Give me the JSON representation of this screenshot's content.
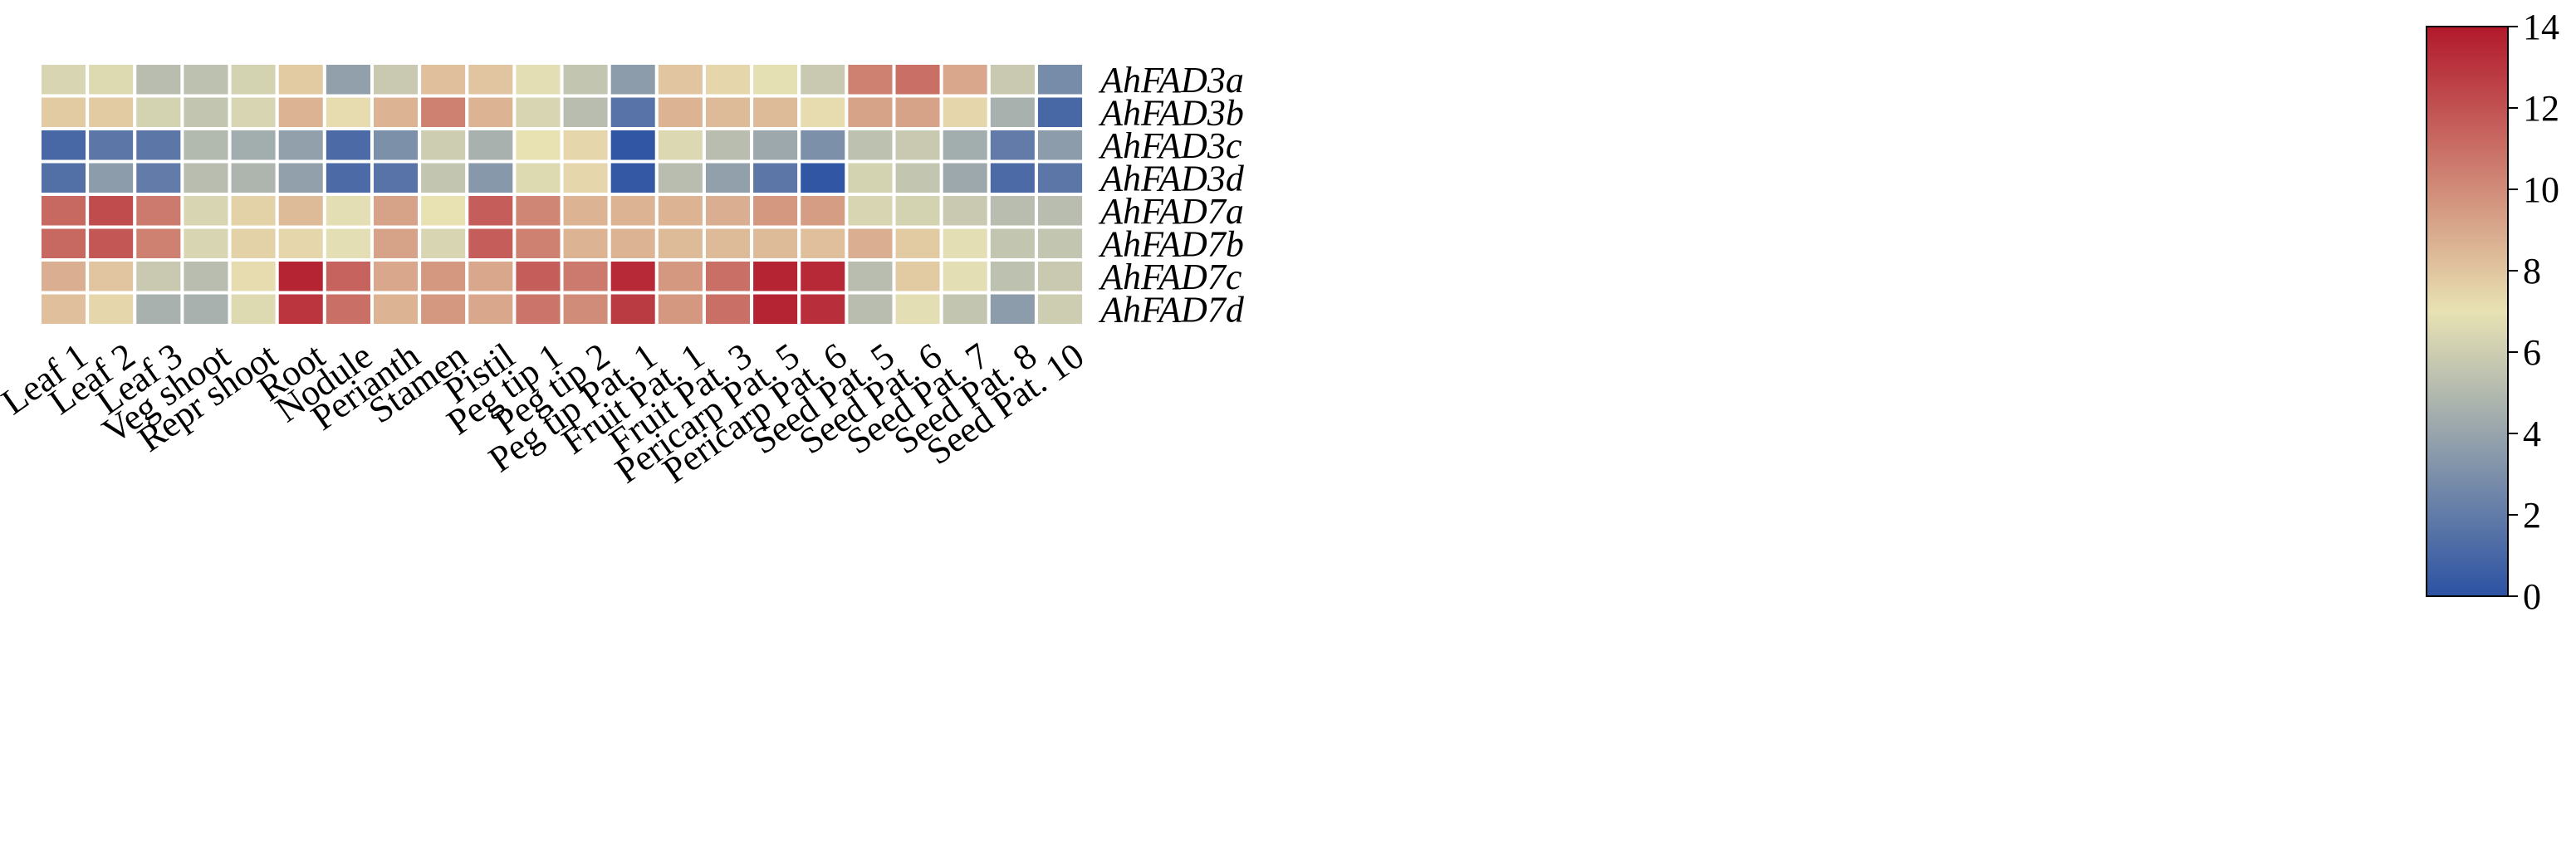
{
  "chart_data": {
    "type": "heatmap",
    "title": "",
    "xlabel": "",
    "ylabel": "",
    "columns": [
      "Leaf 1",
      "Leaf 2",
      "Leaf 3",
      "Veg shoot",
      "Repr shoot",
      "Root",
      "Nodule",
      "Perianth",
      "Stamen",
      "Pistil",
      "Peg tip 1",
      "Peg tip 2",
      "Peg tip Pat. 1",
      "Fruit Pat. 1",
      "Fruit Pat. 3",
      "Pericarp Pat. 5",
      "Pericarp Pat. 6",
      "Seed Pat. 5",
      "Seed Pat. 6",
      "Seed Pat. 7",
      "Seed Pat. 8",
      "Seed Pat. 10"
    ],
    "rows": [
      "AhFAD3a",
      "AhFAD3b",
      "AhFAD3c",
      "AhFAD3d",
      "AhFAD7a",
      "AhFAD7b",
      "AhFAD7c",
      "AhFAD7d"
    ],
    "values": [
      [
        6.4,
        6.6,
        5.2,
        5.4,
        6.2,
        7.8,
        3.8,
        5.8,
        8.2,
        8.0,
        6.8,
        5.6,
        3.6,
        8.0,
        7.4,
        6.9,
        5.8,
        10.4,
        11.0,
        9.0,
        5.8,
        2.8
      ],
      [
        7.8,
        7.8,
        6.2,
        5.6,
        6.4,
        8.6,
        7.2,
        8.6,
        10.4,
        8.6,
        6.4,
        5.2,
        1.6,
        8.6,
        8.4,
        8.4,
        7.2,
        9.2,
        9.2,
        7.4,
        4.6,
        1.0
      ],
      [
        1.0,
        1.8,
        1.8,
        5.0,
        4.4,
        3.8,
        1.2,
        3.0,
        6.0,
        4.6,
        7.0,
        7.4,
        0.2,
        6.5,
        5.2,
        4.2,
        3.0,
        5.4,
        5.8,
        4.4,
        2.0,
        3.6
      ],
      [
        1.4,
        3.6,
        2.0,
        5.2,
        4.8,
        3.8,
        1.2,
        1.6,
        5.6,
        3.4,
        6.6,
        7.4,
        0.3,
        5.2,
        3.8,
        1.8,
        0.2,
        6.2,
        5.6,
        4.2,
        1.2,
        1.8
      ],
      [
        11.2,
        12.2,
        10.6,
        6.4,
        7.6,
        8.4,
        6.8,
        9.2,
        7.0,
        11.6,
        10.2,
        8.6,
        8.6,
        8.6,
        8.8,
        9.6,
        9.4,
        6.4,
        6.2,
        5.8,
        5.2,
        5.2
      ],
      [
        11.2,
        11.8,
        10.4,
        6.4,
        7.6,
        7.4,
        6.8,
        9.2,
        6.4,
        11.6,
        10.4,
        8.6,
        8.6,
        8.4,
        8.4,
        8.4,
        8.2,
        8.8,
        7.8,
        6.8,
        5.6,
        5.6
      ],
      [
        8.8,
        8.0,
        5.8,
        5.2,
        7.2,
        13.6,
        11.4,
        9.0,
        9.6,
        9.0,
        11.6,
        10.6,
        13.4,
        9.6,
        11.0,
        13.6,
        13.4,
        5.2,
        7.8,
        6.8,
        5.4,
        5.8
      ],
      [
        8.2,
        7.4,
        4.6,
        4.6,
        6.6,
        13.0,
        11.0,
        8.6,
        9.6,
        9.0,
        10.8,
        10.0,
        12.8,
        9.6,
        11.0,
        13.6,
        13.2,
        5.2,
        6.8,
        5.6,
        3.6,
        6.0
      ]
    ],
    "colorscale": {
      "min": 0,
      "max": 14,
      "stops": [
        "#2c52a3",
        "#e8e2b3",
        "#b2182b"
      ],
      "ticks": [
        "0",
        "2",
        "4",
        "6",
        "8",
        "10",
        "12",
        "14"
      ]
    },
    "grid": true
  }
}
